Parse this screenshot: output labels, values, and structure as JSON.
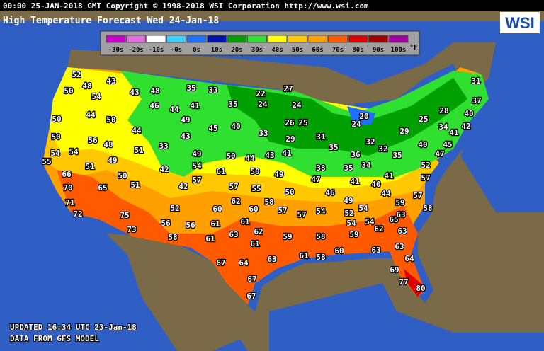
{
  "header": {
    "info": "00:00 25-JAN-2018 GMT Copyright © 1998-2018 WSI Corporation  http://www.wsi.com",
    "title": "High Temperature Forecast  Wed 24-Jan-18",
    "logo": "WSI"
  },
  "legend": {
    "unit": "°F",
    "items": [
      {
        "label": "-30s",
        "color": "#cc00cc"
      },
      {
        "label": "-20s",
        "color": "#e070e0"
      },
      {
        "label": "-10s",
        "color": "#ffffff"
      },
      {
        "label": "-0s",
        "color": "#40d0ff"
      },
      {
        "label": "0s",
        "color": "#2070ff"
      },
      {
        "label": "10s",
        "color": "#0010b0"
      },
      {
        "label": "20s",
        "color": "#00a000"
      },
      {
        "label": "30s",
        "color": "#30e030"
      },
      {
        "label": "40s",
        "color": "#ffff00"
      },
      {
        "label": "50s",
        "color": "#ffc800"
      },
      {
        "label": "60s",
        "color": "#ffa000"
      },
      {
        "label": "70s",
        "color": "#ff5a00"
      },
      {
        "label": "80s",
        "color": "#e00000"
      },
      {
        "label": "90s",
        "color": "#a00000"
      },
      {
        "label": "100s",
        "color": "#a000a0"
      }
    ]
  },
  "temperatures": [
    52,
    48,
    43,
    50,
    54,
    43,
    48,
    35,
    33,
    22,
    27,
    31,
    37,
    46,
    44,
    41,
    35,
    24,
    24,
    50,
    44,
    50,
    49,
    45,
    40,
    26,
    25,
    20,
    25,
    28,
    40,
    44,
    43,
    33,
    29,
    31,
    24,
    29,
    34,
    42,
    41,
    50,
    56,
    48,
    33,
    51,
    32,
    32,
    40,
    45,
    35,
    54,
    54,
    55,
    49,
    50,
    44,
    43,
    41,
    36,
    35,
    47,
    51,
    49,
    42,
    54,
    61,
    50,
    49,
    38,
    35,
    34,
    52,
    66,
    50,
    57,
    47,
    41,
    41,
    57,
    70,
    65,
    51,
    42,
    57,
    55,
    50,
    46,
    40,
    44,
    71,
    52,
    62,
    58,
    49,
    59,
    57,
    72,
    75,
    60,
    60,
    57,
    57,
    54,
    52,
    54,
    58,
    56,
    56,
    61,
    61,
    54,
    54,
    65,
    63,
    62,
    73,
    58,
    63,
    62,
    59,
    58,
    59,
    63,
    61,
    61,
    60,
    63,
    63,
    67,
    64,
    63,
    61,
    58,
    64,
    69,
    77,
    67,
    80,
    67
  ],
  "footer": {
    "updated": "UPDATED 16:34 UTC 23-Jan-18",
    "source": "DATA FROM GFS MODEL"
  }
}
